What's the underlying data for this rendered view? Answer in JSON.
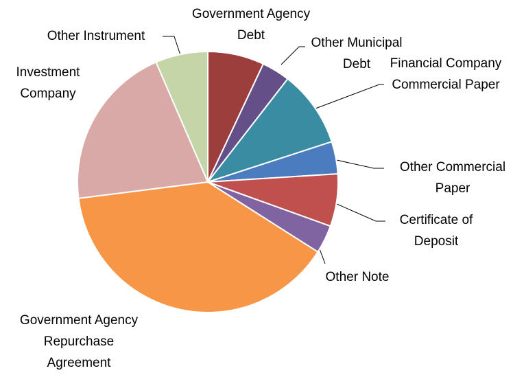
{
  "chart_data": {
    "type": "pie",
    "categories": [
      "Government Agency Debt",
      "Other Municipal Debt",
      "Financial Company Commercial Paper",
      "Other Commercial Paper",
      "Certificate of Deposit",
      "Other Note",
      "Government Agency Repurchase Agreement",
      "Investment Company",
      "Other Instrument"
    ],
    "values": [
      7,
      3.5,
      9.5,
      4,
      6.5,
      3.5,
      39,
      20.5,
      6.5
    ],
    "colors": [
      "#9c3f3c",
      "#654f88",
      "#3a8ca3",
      "#4a7cbf",
      "#c0504d",
      "#8064a2",
      "#f79646",
      "#d9a9a8",
      "#c4d6a8"
    ]
  }
}
